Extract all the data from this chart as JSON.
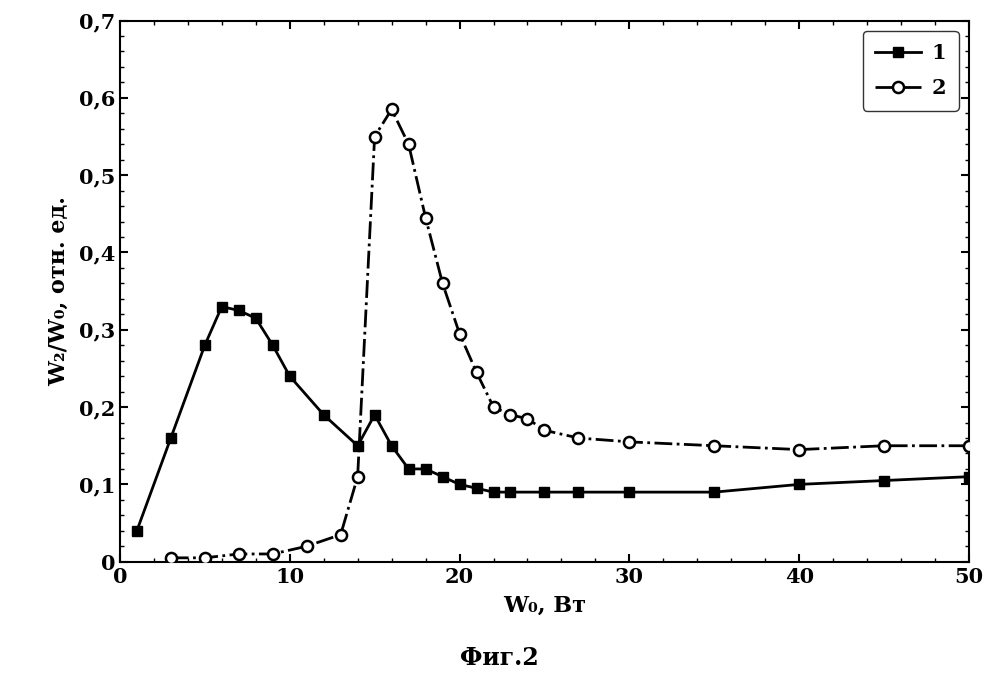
{
  "series1_x": [
    1,
    3,
    5,
    6,
    7,
    8,
    9,
    10,
    12,
    14,
    15,
    16,
    17,
    18,
    19,
    20,
    21,
    22,
    23,
    25,
    27,
    30,
    35,
    40,
    45,
    50
  ],
  "series1_y": [
    0.04,
    0.16,
    0.28,
    0.33,
    0.325,
    0.315,
    0.28,
    0.24,
    0.19,
    0.15,
    0.19,
    0.15,
    0.12,
    0.12,
    0.11,
    0.1,
    0.095,
    0.09,
    0.09,
    0.09,
    0.09,
    0.09,
    0.09,
    0.1,
    0.105,
    0.11
  ],
  "series2_x": [
    3,
    5,
    7,
    9,
    11,
    13,
    14,
    15,
    16,
    17,
    18,
    19,
    20,
    21,
    22,
    23,
    24,
    25,
    27,
    30,
    35,
    40,
    45,
    50
  ],
  "series2_y": [
    0.005,
    0.005,
    0.01,
    0.01,
    0.02,
    0.035,
    0.11,
    0.55,
    0.585,
    0.54,
    0.445,
    0.36,
    0.295,
    0.245,
    0.2,
    0.19,
    0.185,
    0.17,
    0.16,
    0.155,
    0.15,
    0.145,
    0.15,
    0.15
  ],
  "xlabel": "W₀, Вт",
  "ylabel": "W₂/W₀, отн. ед.",
  "legend1": "1",
  "legend2": "2",
  "caption": "Фиг.2",
  "xlim": [
    0,
    50
  ],
  "ylim": [
    0,
    0.7
  ],
  "yticks": [
    0,
    0.1,
    0.2,
    0.3,
    0.4,
    0.5,
    0.6,
    0.7
  ],
  "ytick_labels": [
    "0",
    "0,1",
    "0,2",
    "0,3",
    "0,4",
    "0,5",
    "0,6",
    "0,7"
  ],
  "xticks": [
    0,
    10,
    20,
    30,
    40,
    50
  ],
  "xtick_labels": [
    "0",
    "10",
    "20",
    "30",
    "40",
    "50"
  ],
  "background_color": "#ffffff",
  "line1_color": "#000000",
  "line2_color": "#000000"
}
